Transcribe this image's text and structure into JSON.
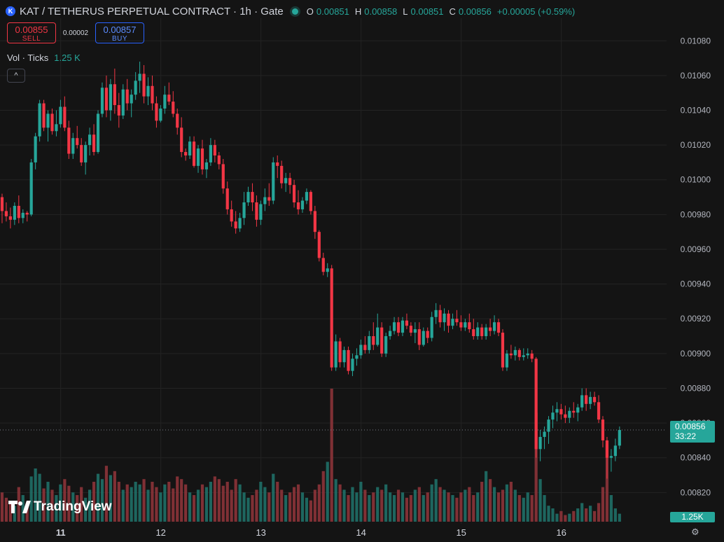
{
  "header": {
    "logo_letter": "K",
    "title": "KAT / TETHERUS PERPETUAL CONTRACT · 1h · Gate",
    "ohlc": {
      "o_label": "O",
      "o": "0.00851",
      "h_label": "H",
      "h": "0.00858",
      "l_label": "L",
      "l": "0.00851",
      "c_label": "C",
      "c": "0.00856",
      "change": "+0.00005 (+0.59%)"
    }
  },
  "trade": {
    "sell_price": "0.00855",
    "sell_label": "SELL",
    "spread": "0.00002",
    "buy_price": "0.00857",
    "buy_label": "BUY"
  },
  "volume_legend": {
    "label": "Vol · Ticks",
    "value": "1.25 K"
  },
  "collapse_label": "^",
  "branding": "TradingView",
  "price_tag": {
    "price": "0.00856",
    "countdown": "33:22"
  },
  "volume_tag": "1.25K",
  "colors": {
    "up": "#26a69a",
    "down": "#f23645",
    "background": "#141414",
    "grid": "#232323"
  },
  "chart_data": {
    "type": "candlestick",
    "y_ticks": [
      "0.01080",
      "0.01060",
      "0.01040",
      "0.01020",
      "0.01000",
      "0.00980",
      "0.00960",
      "0.00940",
      "0.00920",
      "0.00900",
      "0.00880",
      "0.00860",
      "0.00840",
      "0.00820"
    ],
    "x_ticks": [
      "11",
      "12",
      "13",
      "14",
      "15",
      "16"
    ],
    "ylim": [
      0.00802,
      0.01093
    ],
    "current_price": 0.00856,
    "x_start_hour": 9.45,
    "candles": [
      [
        0.0099,
        0.00992,
        0.00975,
        0.00982
      ],
      [
        0.00982,
        0.00987,
        0.00976,
        0.00979
      ],
      [
        0.00979,
        0.00984,
        0.00972,
        0.00977
      ],
      [
        0.00977,
        0.00987,
        0.00974,
        0.00985
      ],
      [
        0.00985,
        0.00991,
        0.00975,
        0.00978
      ],
      [
        0.00978,
        0.00983,
        0.00975,
        0.00981
      ],
      [
        0.00981,
        0.00982,
        0.00976,
        0.0098
      ],
      [
        0.0098,
        0.01012,
        0.00979,
        0.0101
      ],
      [
        0.0101,
        0.01027,
        0.01006,
        0.01025
      ],
      [
        0.01025,
        0.01046,
        0.01022,
        0.01044
      ],
      [
        0.01044,
        0.01046,
        0.01028,
        0.0103
      ],
      [
        0.0103,
        0.0104,
        0.01022,
        0.01038
      ],
      [
        0.01038,
        0.01041,
        0.01026,
        0.01028
      ],
      [
        0.01028,
        0.0104,
        0.01025,
        0.01032
      ],
      [
        0.01032,
        0.01046,
        0.0103,
        0.01042
      ],
      [
        0.01042,
        0.01048,
        0.01028,
        0.0103
      ],
      [
        0.0103,
        0.01034,
        0.01012,
        0.01015
      ],
      [
        0.01015,
        0.01027,
        0.01012,
        0.01024
      ],
      [
        0.01024,
        0.01031,
        0.01018,
        0.0102
      ],
      [
        0.0102,
        0.01024,
        0.01008,
        0.0101
      ],
      [
        0.0101,
        0.01022,
        0.01003,
        0.0102
      ],
      [
        0.0102,
        0.0103,
        0.01014,
        0.01026
      ],
      [
        0.01026,
        0.01032,
        0.01014,
        0.01016
      ],
      [
        0.01016,
        0.0104,
        0.01015,
        0.01038
      ],
      [
        0.01038,
        0.01056,
        0.01036,
        0.01053
      ],
      [
        0.01053,
        0.0106,
        0.01036,
        0.0104
      ],
      [
        0.0104,
        0.01058,
        0.01034,
        0.01055
      ],
      [
        0.01055,
        0.01064,
        0.01038,
        0.01043
      ],
      [
        0.01043,
        0.0105,
        0.0103,
        0.01037
      ],
      [
        0.01037,
        0.01055,
        0.01035,
        0.01052
      ],
      [
        0.01052,
        0.01058,
        0.0104,
        0.01044
      ],
      [
        0.01044,
        0.01052,
        0.01036,
        0.01049
      ],
      [
        0.01049,
        0.01062,
        0.01046,
        0.01057
      ],
      [
        0.01057,
        0.01068,
        0.0105,
        0.01061
      ],
      [
        0.01061,
        0.01066,
        0.01044,
        0.01048
      ],
      [
        0.01048,
        0.01059,
        0.01043,
        0.01054
      ],
      [
        0.01054,
        0.0106,
        0.0104,
        0.01044
      ],
      [
        0.01044,
        0.01048,
        0.0103,
        0.01034
      ],
      [
        0.01034,
        0.01043,
        0.01033,
        0.01041
      ],
      [
        0.01041,
        0.01054,
        0.01038,
        0.01049
      ],
      [
        0.01049,
        0.01056,
        0.01043,
        0.01045
      ],
      [
        0.01045,
        0.01051,
        0.01036,
        0.01038
      ],
      [
        0.01038,
        0.01041,
        0.01026,
        0.0103
      ],
      [
        0.0103,
        0.01036,
        0.01013,
        0.01016
      ],
      [
        0.01016,
        0.01018,
        0.01011,
        0.01014
      ],
      [
        0.01014,
        0.01025,
        0.01012,
        0.01022
      ],
      [
        0.01022,
        0.01025,
        0.01007,
        0.01008
      ],
      [
        0.01008,
        0.0102,
        0.01004,
        0.01018
      ],
      [
        0.01018,
        0.01023,
        0.01003,
        0.01006
      ],
      [
        0.01006,
        0.01012,
        0.01001,
        0.0101
      ],
      [
        0.0101,
        0.01024,
        0.01008,
        0.0102
      ],
      [
        0.0102,
        0.01023,
        0.0101,
        0.01014
      ],
      [
        0.01014,
        0.01016,
        0.01006,
        0.01009
      ],
      [
        0.01009,
        0.01012,
        0.00992,
        0.00995
      ],
      [
        0.00995,
        0.00999,
        0.0098,
        0.00983
      ],
      [
        0.00983,
        0.00988,
        0.00973,
        0.00976
      ],
      [
        0.00976,
        0.00982,
        0.00969,
        0.00972
      ],
      [
        0.00972,
        0.00981,
        0.0097,
        0.00978
      ],
      [
        0.00978,
        0.00993,
        0.00974,
        0.00987
      ],
      [
        0.00987,
        0.00996,
        0.00985,
        0.00993
      ],
      [
        0.00993,
        0.00998,
        0.00982,
        0.00987
      ],
      [
        0.00987,
        0.00991,
        0.00973,
        0.00977
      ],
      [
        0.00977,
        0.00988,
        0.00974,
        0.00986
      ],
      [
        0.00986,
        0.00995,
        0.00982,
        0.0099
      ],
      [
        0.0099,
        0.00998,
        0.00985,
        0.00988
      ],
      [
        0.00988,
        0.01013,
        0.00986,
        0.0101
      ],
      [
        0.0101,
        0.01014,
        0.01001,
        0.01008
      ],
      [
        0.01008,
        0.01011,
        0.00995,
        0.00998
      ],
      [
        0.00998,
        0.01004,
        0.00993,
        0.01001
      ],
      [
        0.01001,
        0.01004,
        0.00992,
        0.00997
      ],
      [
        0.00997,
        0.01,
        0.00984,
        0.00987
      ],
      [
        0.00987,
        0.00994,
        0.0098,
        0.00983
      ],
      [
        0.00983,
        0.0099,
        0.00981,
        0.00988
      ],
      [
        0.00988,
        0.00995,
        0.00986,
        0.00993
      ],
      [
        0.00993,
        0.00994,
        0.0098,
        0.00982
      ],
      [
        0.00982,
        0.00985,
        0.00966,
        0.0097
      ],
      [
        0.0097,
        0.00971,
        0.00953,
        0.00955
      ],
      [
        0.00955,
        0.00958,
        0.00945,
        0.00947
      ],
      [
        0.00947,
        0.00952,
        0.00944,
        0.00949
      ],
      [
        0.00949,
        0.00951,
        0.0089,
        0.00892
      ],
      [
        0.00892,
        0.00911,
        0.0089,
        0.00907
      ],
      [
        0.00907,
        0.00909,
        0.00892,
        0.00895
      ],
      [
        0.00895,
        0.00904,
        0.00892,
        0.00902
      ],
      [
        0.00902,
        0.00904,
        0.00888,
        0.0089
      ],
      [
        0.0089,
        0.009,
        0.00887,
        0.00897
      ],
      [
        0.00897,
        0.00903,
        0.00893,
        0.00899
      ],
      [
        0.00899,
        0.00908,
        0.00897,
        0.00905
      ],
      [
        0.00905,
        0.0091,
        0.009,
        0.00902
      ],
      [
        0.00902,
        0.00913,
        0.009,
        0.0091
      ],
      [
        0.0091,
        0.00918,
        0.00902,
        0.00905
      ],
      [
        0.00905,
        0.00923,
        0.00904,
        0.00915
      ],
      [
        0.00915,
        0.00918,
        0.00898,
        0.009
      ],
      [
        0.009,
        0.00912,
        0.00898,
        0.0091
      ],
      [
        0.0091,
        0.00916,
        0.00908,
        0.00913
      ],
      [
        0.00913,
        0.00921,
        0.00911,
        0.00918
      ],
      [
        0.00918,
        0.00921,
        0.0091,
        0.00912
      ],
      [
        0.00912,
        0.00921,
        0.0091,
        0.00919
      ],
      [
        0.00919,
        0.00923,
        0.00914,
        0.00916
      ],
      [
        0.00916,
        0.00918,
        0.0091,
        0.00912
      ],
      [
        0.00912,
        0.00918,
        0.00906,
        0.00914
      ],
      [
        0.00914,
        0.00918,
        0.00902,
        0.00905
      ],
      [
        0.00905,
        0.00915,
        0.00904,
        0.00913
      ],
      [
        0.00913,
        0.00915,
        0.00906,
        0.00909
      ],
      [
        0.00909,
        0.00924,
        0.00907,
        0.00921
      ],
      [
        0.00921,
        0.00929,
        0.00917,
        0.00925
      ],
      [
        0.00925,
        0.00928,
        0.00915,
        0.00918
      ],
      [
        0.00918,
        0.00926,
        0.00913,
        0.00923
      ],
      [
        0.00923,
        0.00925,
        0.00912,
        0.00916
      ],
      [
        0.00916,
        0.00923,
        0.00914,
        0.0092
      ],
      [
        0.0092,
        0.00925,
        0.00916,
        0.00918
      ],
      [
        0.00918,
        0.00922,
        0.00913,
        0.00915
      ],
      [
        0.00915,
        0.0092,
        0.00913,
        0.00918
      ],
      [
        0.00918,
        0.00923,
        0.00912,
        0.00914
      ],
      [
        0.00914,
        0.0092,
        0.00908,
        0.0091
      ],
      [
        0.0091,
        0.00918,
        0.00908,
        0.00915
      ],
      [
        0.00915,
        0.00917,
        0.00908,
        0.0091
      ],
      [
        0.0091,
        0.00917,
        0.00908,
        0.00915
      ],
      [
        0.00915,
        0.0092,
        0.0091,
        0.00913
      ],
      [
        0.00913,
        0.00922,
        0.00911,
        0.00918
      ],
      [
        0.00918,
        0.0092,
        0.0091,
        0.00912
      ],
      [
        0.00912,
        0.00914,
        0.0089,
        0.00892
      ],
      [
        0.00892,
        0.00902,
        0.0089,
        0.009
      ],
      [
        0.009,
        0.00905,
        0.00897,
        0.00899
      ],
      [
        0.00899,
        0.00904,
        0.00896,
        0.00902
      ],
      [
        0.00902,
        0.00903,
        0.00896,
        0.00898
      ],
      [
        0.00898,
        0.00903,
        0.00896,
        0.00899
      ],
      [
        0.00899,
        0.00903,
        0.00897,
        0.009
      ],
      [
        0.009,
        0.00902,
        0.00895,
        0.00897
      ],
      [
        0.00897,
        0.00898,
        0.0084,
        0.00845
      ],
      [
        0.00845,
        0.00856,
        0.00838,
        0.00852
      ],
      [
        0.00852,
        0.00858,
        0.00845,
        0.00855
      ],
      [
        0.00855,
        0.00864,
        0.00848,
        0.00862
      ],
      [
        0.00862,
        0.0087,
        0.00857,
        0.00866
      ],
      [
        0.00866,
        0.00872,
        0.00861,
        0.00868
      ],
      [
        0.00868,
        0.00871,
        0.00862,
        0.00865
      ],
      [
        0.00865,
        0.0087,
        0.0086,
        0.00863
      ],
      [
        0.00863,
        0.00869,
        0.0086,
        0.00867
      ],
      [
        0.00867,
        0.00872,
        0.00863,
        0.00866
      ],
      [
        0.00866,
        0.00871,
        0.00861,
        0.00869
      ],
      [
        0.00869,
        0.0088,
        0.00867,
        0.00876
      ],
      [
        0.00876,
        0.0088,
        0.00867,
        0.00871
      ],
      [
        0.00871,
        0.00878,
        0.00868,
        0.00875
      ],
      [
        0.00875,
        0.00878,
        0.0087,
        0.00872
      ],
      [
        0.00872,
        0.00876,
        0.0086,
        0.00862
      ],
      [
        0.00862,
        0.00864,
        0.00846,
        0.0085
      ],
      [
        0.0085,
        0.00852,
        0.00828,
        0.0084
      ],
      [
        0.0084,
        0.00845,
        0.00832,
        0.00841
      ],
      [
        0.00841,
        0.00851,
        0.00838,
        0.00847
      ],
      [
        0.00847,
        0.00858,
        0.00845,
        0.00856
      ]
    ],
    "volumes": [
      0.22,
      0.18,
      0.15,
      0.12,
      0.26,
      0.2,
      0.14,
      0.34,
      0.4,
      0.36,
      0.25,
      0.3,
      0.24,
      0.2,
      0.28,
      0.32,
      0.27,
      0.22,
      0.2,
      0.26,
      0.18,
      0.24,
      0.3,
      0.36,
      0.32,
      0.42,
      0.35,
      0.38,
      0.3,
      0.24,
      0.28,
      0.26,
      0.3,
      0.28,
      0.32,
      0.24,
      0.3,
      0.26,
      0.22,
      0.28,
      0.3,
      0.25,
      0.34,
      0.32,
      0.28,
      0.22,
      0.2,
      0.24,
      0.28,
      0.26,
      0.3,
      0.34,
      0.32,
      0.27,
      0.3,
      0.24,
      0.32,
      0.28,
      0.22,
      0.18,
      0.2,
      0.24,
      0.3,
      0.26,
      0.22,
      0.36,
      0.3,
      0.24,
      0.2,
      0.22,
      0.26,
      0.28,
      0.22,
      0.18,
      0.16,
      0.24,
      0.28,
      0.38,
      0.45,
      1.0,
      0.32,
      0.28,
      0.24,
      0.2,
      0.26,
      0.22,
      0.3,
      0.24,
      0.2,
      0.22,
      0.26,
      0.24,
      0.28,
      0.22,
      0.2,
      0.24,
      0.22,
      0.18,
      0.2,
      0.24,
      0.26,
      0.2,
      0.22,
      0.28,
      0.32,
      0.26,
      0.24,
      0.22,
      0.2,
      0.18,
      0.22,
      0.24,
      0.26,
      0.2,
      0.22,
      0.3,
      0.38,
      0.32,
      0.26,
      0.22,
      0.24,
      0.28,
      0.3,
      0.24,
      0.2,
      0.18,
      0.22,
      0.2,
      0.82,
      0.32,
      0.2,
      0.12,
      0.1,
      0.06,
      0.08,
      0.05,
      0.06,
      0.08,
      0.1,
      0.14,
      0.1,
      0.12,
      0.08,
      0.14,
      0.26,
      0.58,
      0.2,
      0.1,
      0.06
    ]
  }
}
